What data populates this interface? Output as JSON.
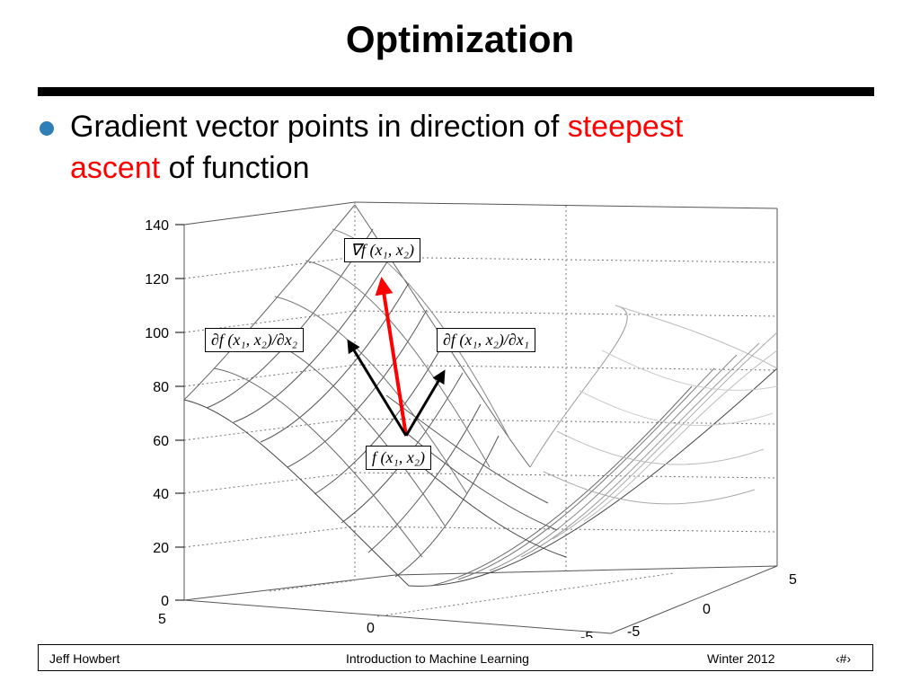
{
  "slide": {
    "title": "Optimization",
    "bullet": {
      "text_1": "Gradient vector points in direction of ",
      "highlight_1": "steepest",
      "highlight_2": "ascent",
      "text_2": " of function",
      "dot_color": "#2f7fb7",
      "highlight_color": "#ff0000"
    }
  },
  "figure": {
    "z_ticks": [
      "140",
      "120",
      "100",
      "80",
      "60",
      "40",
      "20",
      "0"
    ],
    "x_ticks": [
      "5",
      "0",
      "-5"
    ],
    "y_ticks": [
      "5",
      "0",
      "-5"
    ],
    "labels": {
      "gradient": "∇f (x₁, x₂)",
      "partial_x2": "∂f (x₁, x₂)/∂x₂",
      "partial_x1": "∂f (x₁, x₂)/∂x₁",
      "point": "f (x₁, x₂)"
    },
    "gradient_arrow_color": "#ff0000",
    "partial_arrow_color": "#000000"
  },
  "footer": {
    "author": "Jeff Howbert",
    "course": "Introduction to Machine Learning",
    "term": "Winter 2012",
    "page": "‹#›"
  }
}
